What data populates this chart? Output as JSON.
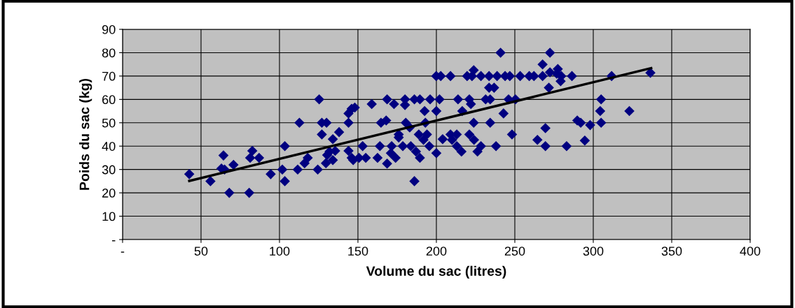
{
  "chart_data": {
    "type": "scatter",
    "xlabel": "Volume du sac (litres)",
    "ylabel": "Poids du sac (kg)",
    "xlim": [
      0,
      400
    ],
    "ylim": [
      0,
      90
    ],
    "xticks": [
      {
        "value": 0,
        "label": "-"
      },
      50,
      100,
      150,
      200,
      250,
      300,
      350,
      400
    ],
    "yticks": [
      {
        "value": 0,
        "label": "-"
      },
      10,
      20,
      30,
      40,
      50,
      60,
      70,
      80,
      90
    ],
    "grid": true,
    "marker": "diamond",
    "series": [
      {
        "color": "#000080",
        "x": [
          42.5,
          56,
          64.3,
          63,
          65,
          70.7,
          68,
          80.7,
          82.7,
          81.3,
          87,
          94.4,
          101.8,
          103.4,
          103.4,
          111.6,
          112.7,
          118,
          116,
          124.4,
          125.3,
          127,
          130,
          127,
          130.4,
          129.6,
          131.9,
          134,
          135.5,
          134,
          138,
          144,
          144,
          146,
          148,
          144,
          146,
          147,
          150.7,
          153,
          155,
          158.8,
          162.5,
          164,
          168.6,
          164.7,
          168,
          168.6,
          171.5,
          171,
          174,
          173,
          176,
          176,
          178.6,
          180,
          180,
          180.5,
          183,
          183.7,
          186,
          189.5,
          186,
          187,
          189.5,
          188.8,
          192.5,
          193,
          191.8,
          194,
          195.5,
          196,
          199.9,
          202.8,
          202,
          200,
          200,
          204,
          209,
          209,
          210,
          213,
          213,
          213.8,
          216,
          216.5,
          221,
          222,
          221,
          224,
          223.8,
          219.6,
          223.8,
          222.7,
          228.4,
          228.4,
          226.2,
          231.4,
          234.3,
          233.6,
          236.8,
          234.3,
          233.6,
          238.7,
          238,
          240.9,
          242.8,
          243.8,
          246.8,
          246,
          250.4,
          248.2,
          253.4,
          259.2,
          262.2,
          264.4,
          267.7,
          267.7,
          269.5,
          269.5,
          271.7,
          272.4,
          272.4,
          277.4,
          276.7,
          279.6,
          279.2,
          286.4,
          283,
          289.8,
          292,
          298,
          294.6,
          305,
          304.4,
          305,
          311.7,
          323,
          336.4
        ],
        "values": [
          28,
          25,
          36,
          30.4,
          30,
          32,
          20,
          20,
          38,
          35,
          35,
          28,
          30,
          40,
          25,
          30,
          50,
          35,
          32.7,
          30,
          60,
          50,
          50,
          45,
          36.2,
          32.7,
          37.7,
          43,
          38,
          34,
          46,
          50,
          54,
          56,
          56.5,
          38,
          35,
          34,
          35,
          40,
          35,
          58,
          35,
          40,
          60,
          50,
          51,
          32.5,
          40,
          37,
          35,
          58,
          45,
          43.7,
          40,
          60,
          57.6,
          50,
          48,
          40,
          60,
          60,
          25,
          37.7,
          35,
          45,
          55,
          50,
          42.7,
          45,
          40,
          60,
          70,
          70,
          60,
          55,
          37,
          43,
          70,
          45,
          42.7,
          45,
          40,
          60,
          37.7,
          55,
          60,
          58,
          45,
          42.7,
          50,
          70,
          72.5,
          70,
          70,
          40,
          37.7,
          60,
          60,
          65,
          65,
          50,
          70,
          70,
          40,
          80,
          54,
          70,
          70,
          60,
          60,
          45,
          70,
          70,
          70,
          42.7,
          70,
          75,
          47.7,
          40,
          65,
          80,
          71.6,
          73,
          71,
          70,
          67.8,
          70,
          40,
          51,
          50,
          49,
          42.4,
          60,
          55,
          50,
          70,
          55,
          71.4
        ]
      },
      {
        "type": "line",
        "color": "#000000",
        "marker": "none",
        "x": [
          42.5,
          336.9
        ],
        "values": [
          25.1,
          73.4
        ]
      }
    ]
  }
}
